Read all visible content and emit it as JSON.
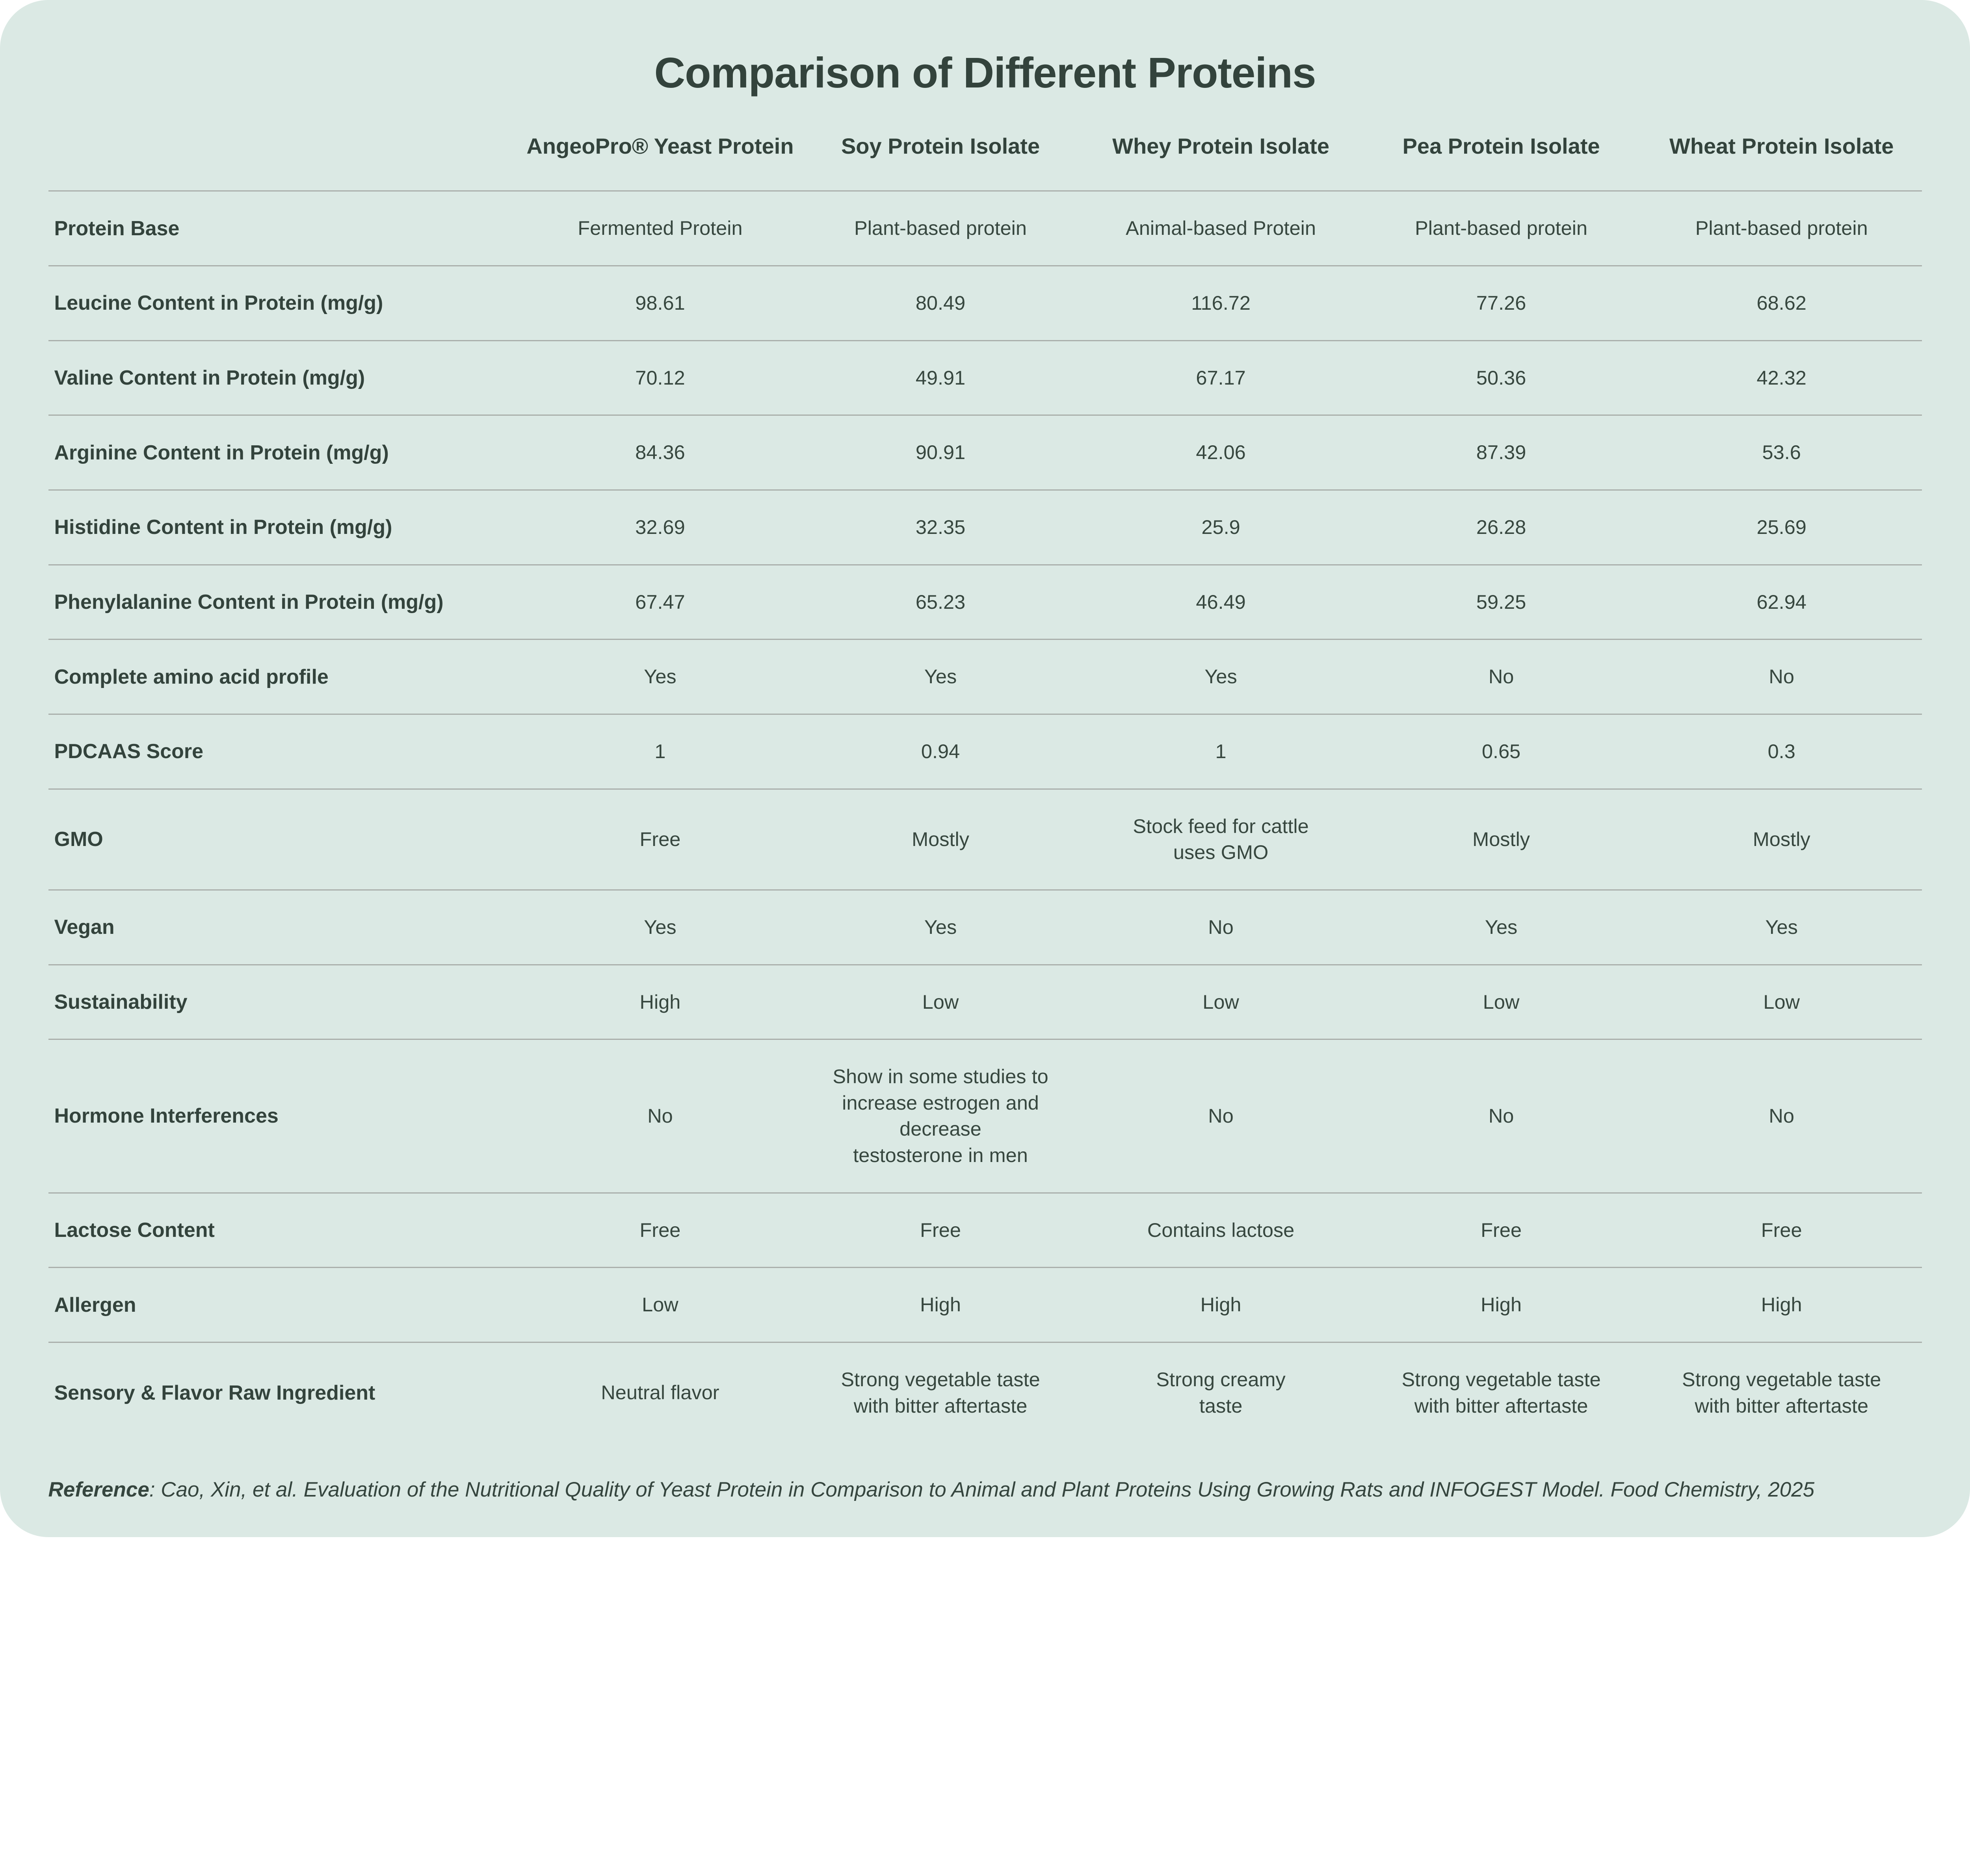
{
  "title": "Comparison of Different Proteins",
  "reference": {
    "label": "Reference",
    "separator": ": ",
    "text": "Cao, Xin, et al. Evaluation of the Nutritional Quality of Yeast Protein in Comparison to Animal and Plant Proteins Using Growing Rats and INFOGEST Model. Food Chemistry, 2025"
  },
  "colors": {
    "page_bg": "#ffffff",
    "card_bg": "#dbe9e4",
    "text": "#35453e",
    "divider": "#a9aeaa"
  },
  "chart_data": {
    "type": "table",
    "title": "Comparison of Different Proteins",
    "columns": [
      "AngeoPro® Yeast Protein",
      "Soy Protein Isolate",
      "Whey Protein Isolate",
      "Pea Protein Isolate",
      "Wheat Protein Isolate"
    ],
    "rows": [
      {
        "label": "Protein Base",
        "values": [
          "Fermented Protein",
          "Plant-based protein",
          "Animal-based Protein",
          "Plant-based protein",
          "Plant-based protein"
        ]
      },
      {
        "label": "Leucine Content in Protein (mg/g)",
        "values": [
          "98.61",
          "80.49",
          "116.72",
          "77.26",
          "68.62"
        ]
      },
      {
        "label": "Valine Content in Protein (mg/g)",
        "values": [
          "70.12",
          "49.91",
          "67.17",
          "50.36",
          "42.32"
        ]
      },
      {
        "label": "Arginine Content in Protein (mg/g)",
        "values": [
          "84.36",
          "90.91",
          "42.06",
          "87.39",
          "53.6"
        ]
      },
      {
        "label": "Histidine Content in Protein (mg/g)",
        "values": [
          "32.69",
          "32.35",
          "25.9",
          "26.28",
          "25.69"
        ]
      },
      {
        "label": "Phenylalanine Content in Protein (mg/g)",
        "values": [
          "67.47",
          "65.23",
          "46.49",
          "59.25",
          "62.94"
        ]
      },
      {
        "label": "Complete amino acid profile",
        "values": [
          "Yes",
          "Yes",
          "Yes",
          "No",
          "No"
        ]
      },
      {
        "label": "PDCAAS Score",
        "values": [
          "1",
          "0.94",
          "1",
          "0.65",
          "0.3"
        ]
      },
      {
        "label": "GMO",
        "values": [
          "Free",
          "Mostly",
          "Stock feed for cattle\nuses GMO",
          "Mostly",
          "Mostly"
        ]
      },
      {
        "label": "Vegan",
        "values": [
          "Yes",
          "Yes",
          "No",
          "Yes",
          "Yes"
        ]
      },
      {
        "label": "Sustainability",
        "values": [
          "High",
          "Low",
          "Low",
          "Low",
          "Low"
        ]
      },
      {
        "label": "Hormone Interferences",
        "values": [
          "No",
          "Show in some studies to\nincrease estrogen and decrease\ntestosterone in men",
          "No",
          "No",
          "No"
        ]
      },
      {
        "label": "Lactose Content",
        "values": [
          "Free",
          "Free",
          "Contains lactose",
          "Free",
          "Free"
        ]
      },
      {
        "label": "Allergen",
        "values": [
          "Low",
          "High",
          "High",
          "High",
          "High"
        ]
      },
      {
        "label": "Sensory & Flavor Raw Ingredient",
        "values": [
          "Neutral flavor",
          "Strong vegetable taste\nwith bitter aftertaste",
          "Strong creamy\ntaste",
          "Strong vegetable taste\nwith bitter aftertaste",
          "Strong vegetable taste\nwith bitter aftertaste"
        ]
      }
    ]
  }
}
